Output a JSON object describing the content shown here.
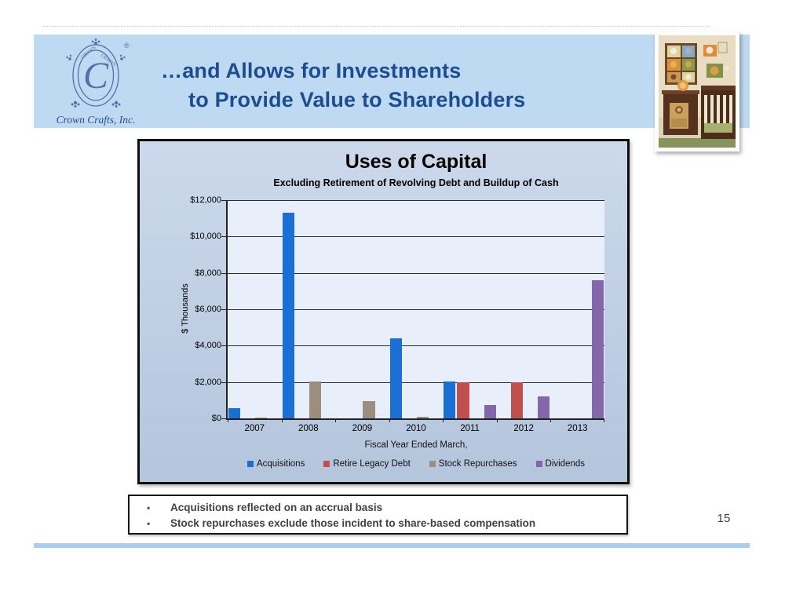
{
  "slide": {
    "page_number": "15"
  },
  "header": {
    "logo": {
      "caption": "Crown Crafts, Inc.",
      "monogram": "C",
      "ring_text_left": "CROWN",
      "ring_text_right": "CRAFTS",
      "registered_mark": "®"
    },
    "title_line1": "…and Allows for Investments",
    "title_line2": "to Provide Value to Shareholders"
  },
  "chart_data": {
    "type": "bar",
    "title": "Uses of Capital",
    "subtitle": "Excluding Retirement of Revolving Debt and Buildup of Cash",
    "xlabel": "Fiscal Year Ended March,",
    "ylabel": "$ Thousands",
    "categories": [
      "2007",
      "2008",
      "2009",
      "2010",
      "2011",
      "2012",
      "2013"
    ],
    "series": [
      {
        "name": "Acquisitions",
        "color": "#1a6fd4",
        "values": [
          550,
          11300,
          0,
          4400,
          2050,
          0,
          0
        ]
      },
      {
        "name": "Retire Legacy Debt",
        "color": "#c0504d",
        "values": [
          0,
          0,
          0,
          0,
          2000,
          2000,
          0
        ]
      },
      {
        "name": "Stock Repurchases",
        "color": "#9c8e7d",
        "values": [
          50,
          2050,
          950,
          100,
          0,
          0,
          0
        ]
      },
      {
        "name": "Dividends",
        "color": "#8268aa",
        "values": [
          0,
          0,
          0,
          0,
          750,
          1200,
          7600
        ]
      }
    ],
    "ylim": [
      0,
      12000
    ],
    "ytick_step": 2000,
    "ytick_labels": [
      "$0",
      "$2,000",
      "$4,000",
      "$6,000",
      "$8,000",
      "$10,000",
      "$12,000"
    ],
    "grid": true,
    "legend_position": "bottom"
  },
  "footer": {
    "bullet_char": "•",
    "bullets": [
      "Acquisitions reflected on an accrual basis",
      "Stock repurchases exclude those incident to share-based compensation"
    ]
  },
  "colors": {
    "header_band": "#bed9f2",
    "title_text": "#1c4d90",
    "plot_bg": "#e8effb",
    "bottom_bar": "#a9cdee"
  }
}
